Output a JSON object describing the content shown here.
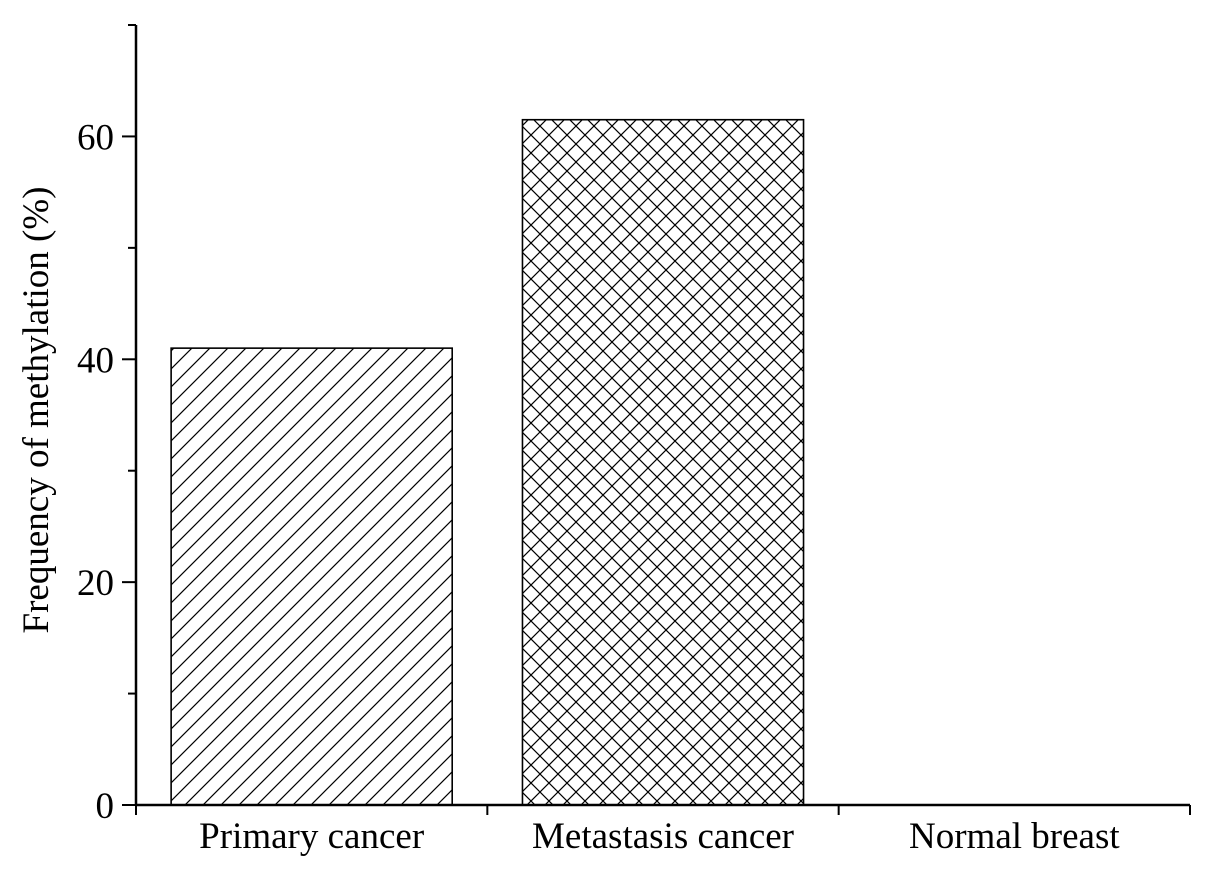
{
  "chart_data": {
    "type": "bar",
    "title": "",
    "xlabel": "",
    "ylabel": "Frequency of methylation (%)",
    "categories": [
      "Primary cancer",
      "Metastasis cancer",
      "Normal breast"
    ],
    "values": [
      41,
      61.5,
      0
    ],
    "patterns": [
      "diagonal-hatch",
      "cross-hatch",
      "none"
    ],
    "ylim": [
      0,
      70
    ],
    "yticks_major": [
      0,
      20,
      40,
      60
    ],
    "ytick_labels": [
      "0",
      "20",
      "40",
      "60"
    ],
    "grid": false,
    "legend": "none",
    "colors": {
      "stroke": "#000000",
      "fill": "#ffffff"
    }
  }
}
